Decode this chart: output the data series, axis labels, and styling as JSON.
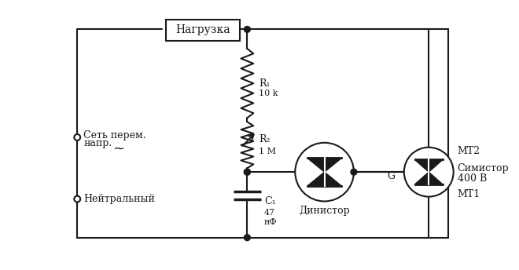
{
  "bg_color": "#ffffff",
  "line_color": "#1a1a1a",
  "text_color": "#1a1a1a",
  "labels": {
    "nagruzka": "Нагрузка",
    "R1": "R₁",
    "R1_val": "10 k",
    "R2": "R₂",
    "R2_val": "1 M",
    "C1": "C₁",
    "C1_val": "47",
    "C1_unit": "нФ",
    "set_prem": "Сеть перем.",
    "napr": "напр.",
    "neytralny": "Нейтральный",
    "dinistor": "Динистор",
    "simistor": "Симистор",
    "simistor_val": "400 В",
    "MT2": "MT2",
    "MT1": "MT1",
    "G": "G"
  },
  "figsize": [
    6.6,
    3.44
  ],
  "dpi": 100
}
